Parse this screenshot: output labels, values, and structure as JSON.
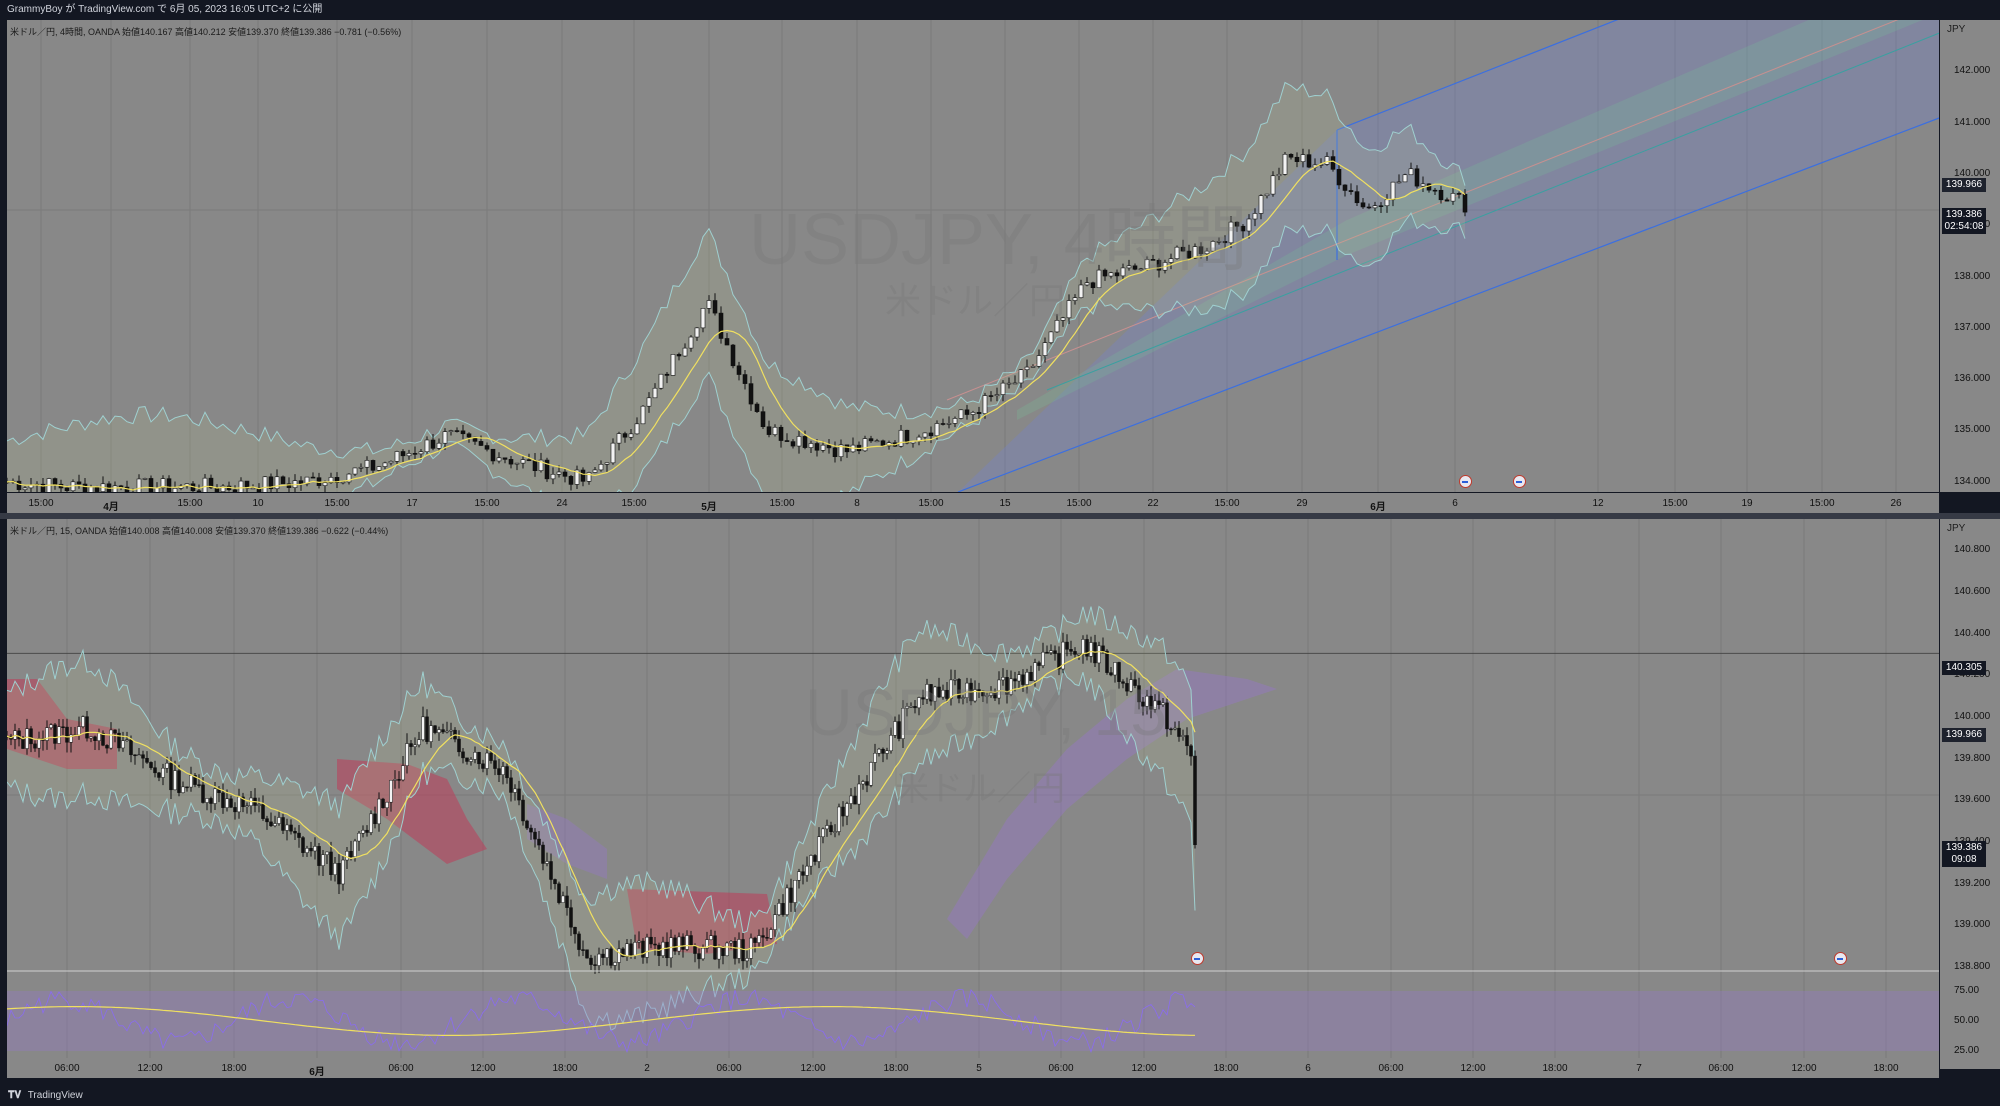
{
  "header": {
    "publisher_text": "GrammyBoy が TradingView.com で 6月 05, 2023 16:05 UTC+2 に公開"
  },
  "footer": {
    "brand": "TradingView",
    "logo": "tradingview-logo-icon"
  },
  "top_pane": {
    "legend": "米ドル／円, 4時間, OANDA  始値140.167  高値140.212  安値139.370  終値139.386  −0.781 (−0.56%)",
    "watermark_main": "USDJPY, 4時間",
    "watermark_sub": "米ドル／円",
    "currency": "JPY",
    "price_ticks": [
      "142.000",
      "141.000",
      "140.000",
      "139.000",
      "138.000",
      "137.000",
      "136.000",
      "135.000",
      "134.000"
    ],
    "badges": {
      "last_close": "139.966",
      "current": "139.386",
      "countdown": "02:54:08"
    },
    "time_ticks": [
      {
        "label": "15:00",
        "bold": false
      },
      {
        "label": "4月",
        "bold": true
      },
      {
        "label": "15:00",
        "bold": false
      },
      {
        "label": "10",
        "bold": false
      },
      {
        "label": "15:00",
        "bold": false
      },
      {
        "label": "17",
        "bold": false
      },
      {
        "label": "15:00",
        "bold": false
      },
      {
        "label": "24",
        "bold": false
      },
      {
        "label": "15:00",
        "bold": false
      },
      {
        "label": "5月",
        "bold": true
      },
      {
        "label": "15:00",
        "bold": false
      },
      {
        "label": "8",
        "bold": false
      },
      {
        "label": "15:00",
        "bold": false
      },
      {
        "label": "15",
        "bold": false
      },
      {
        "label": "15:00",
        "bold": false
      },
      {
        "label": "22",
        "bold": false
      },
      {
        "label": "15:00",
        "bold": false
      },
      {
        "label": "29",
        "bold": false
      },
      {
        "label": "6月",
        "bold": true
      },
      {
        "label": "6",
        "bold": false
      },
      {
        "label": "12",
        "bold": false
      },
      {
        "label": "15:00",
        "bold": false
      },
      {
        "label": "19",
        "bold": false
      },
      {
        "label": "15:00",
        "bold": false
      },
      {
        "label": "26",
        "bold": false
      }
    ],
    "event_icons": [
      "flag-event-icon",
      "flag-event-icon"
    ]
  },
  "bottom_pane": {
    "legend": "米ドル／円, 15, OANDA  始値140.008  高値140.008  安値139.370  終値139.386  −0.622 (−0.44%)",
    "watermark_main": "USDJPY, 15",
    "watermark_sub": "米ドル／円",
    "currency": "JPY",
    "price_ticks": [
      "140.800",
      "140.600",
      "140.400",
      "140.200",
      "140.000",
      "139.800",
      "139.600",
      "139.400",
      "139.200",
      "139.000",
      "138.800"
    ],
    "badges": {
      "line_level": "140.305",
      "last_close": "139.966",
      "current": "139.386",
      "countdown": "09:08"
    },
    "rsi_ticks": [
      "75.00",
      "50.00",
      "25.00"
    ],
    "time_ticks": [
      {
        "label": "06:00",
        "bold": false
      },
      {
        "label": "12:00",
        "bold": false
      },
      {
        "label": "18:00",
        "bold": false
      },
      {
        "label": "6月",
        "bold": true
      },
      {
        "label": "06:00",
        "bold": false
      },
      {
        "label": "12:00",
        "bold": false
      },
      {
        "label": "18:00",
        "bold": false
      },
      {
        "label": "2",
        "bold": false
      },
      {
        "label": "06:00",
        "bold": false
      },
      {
        "label": "12:00",
        "bold": false
      },
      {
        "label": "18:00",
        "bold": false
      },
      {
        "label": "5",
        "bold": false
      },
      {
        "label": "06:00",
        "bold": false
      },
      {
        "label": "12:00",
        "bold": false
      },
      {
        "label": "18:00",
        "bold": false
      },
      {
        "label": "6",
        "bold": false
      },
      {
        "label": "06:00",
        "bold": false
      },
      {
        "label": "12:00",
        "bold": false
      },
      {
        "label": "18:00",
        "bold": false
      },
      {
        "label": "7",
        "bold": false
      },
      {
        "label": "06:00",
        "bold": false
      },
      {
        "label": "12:00",
        "bold": false
      },
      {
        "label": "18:00",
        "bold": false
      }
    ],
    "event_icons": [
      "flag-event-icon",
      "flag-event-icon"
    ]
  },
  "chart_data": [
    {
      "type": "candlestick",
      "title": "USDJPY, 4時間",
      "ylim": [
        133.8,
        143.0
      ],
      "x": [
        "3/31",
        "4/3",
        "4/5",
        "4/10",
        "4/12",
        "4/17",
        "4/19",
        "4/24",
        "4/26",
        "5/1",
        "5/3",
        "5/8",
        "5/10",
        "5/12",
        "5/15",
        "5/17",
        "5/19",
        "5/22",
        "5/24",
        "5/26",
        "5/29",
        "5/31",
        "6/1",
        "6/2",
        "6/5"
      ],
      "close": [
        134.0,
        133.9,
        133.9,
        133.9,
        134.0,
        134.3,
        134.9,
        134.4,
        134.0,
        135.5,
        137.5,
        135.0,
        134.6,
        134.9,
        135.3,
        136.1,
        137.9,
        138.2,
        138.6,
        139.1,
        140.3,
        140.2,
        139.3,
        140.0,
        139.4
      ]
    },
    {
      "type": "candlestick",
      "title": "USDJPY, 15",
      "ylim": [
        138.78,
        140.95
      ],
      "x": [
        "6/1 06:00",
        "6/1 12:00",
        "6/1 18:00",
        "6/2 00:00",
        "6/2 06:00",
        "6/2 12:00",
        "6/2 18:00",
        "6/5 00:00",
        "6/5 06:00",
        "6/5 12:00",
        "6/5 18:00",
        "6/6 00:00",
        "6/6 06:00",
        "6/6 12:00",
        "6/6 18:00",
        "6/7 00:00",
        "6/7 06:00",
        "6/7 12:00",
        "6/7 18:00"
      ],
      "close": [
        139.88,
        139.95,
        139.7,
        139.55,
        139.25,
        139.95,
        139.75,
        138.85,
        138.9,
        138.88,
        139.5,
        140.1,
        140.15,
        140.35,
        140.0,
        139.386,
        null,
        null,
        null
      ],
      "rsi": {
        "ticks": [
          75,
          50,
          25
        ]
      }
    }
  ]
}
